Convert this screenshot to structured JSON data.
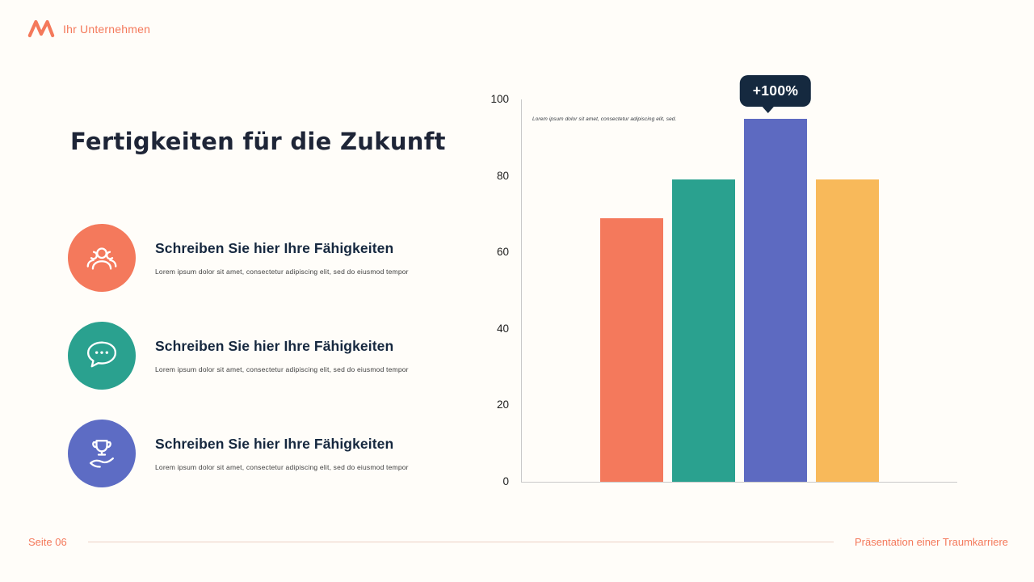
{
  "header": {
    "brand": "Ihr Unternehmen"
  },
  "slide": {
    "title": "Fertigkeiten für die Zukunft",
    "items": [
      {
        "icon": "people-icon",
        "color": "#f4795c",
        "heading": "Schreiben Sie hier Ihre Fähigkeiten",
        "body": "Lorem ipsum dolor sit amet, consectetur adipiscing elit, sed do eiusmod tempor"
      },
      {
        "icon": "chat-bubble-icon",
        "color": "#2aa18f",
        "heading": "Schreiben Sie hier Ihre Fähigkeiten",
        "body": "Lorem ipsum dolor sit amet, consectetur adipiscing elit, sed do eiusmod tempor"
      },
      {
        "icon": "trophy-hand-icon",
        "color": "#5d6cc4",
        "heading": "Schreiben Sie hier Ihre Fähigkeiten",
        "body": "Lorem ipsum dolor sit amet, consectetur adipiscing elit, sed do eiusmod tempor"
      }
    ]
  },
  "chart_data": {
    "type": "bar",
    "categories": [
      "",
      "",
      "",
      ""
    ],
    "values": [
      69,
      79,
      95,
      79
    ],
    "bar_colors": [
      "#f4795c",
      "#2aa18f",
      "#5d6ac1",
      "#f8b95a"
    ],
    "ylim": [
      0,
      100
    ],
    "yticks": [
      0,
      20,
      40,
      60,
      80,
      100
    ],
    "grid": "off",
    "legend": "none",
    "annotation": {
      "label": "+100%",
      "bar_index": 2
    },
    "note": "Lorem ipsum dolor sit amet, consectetur adipiscing elit, sed."
  },
  "footer": {
    "page": "Seite 06",
    "right": "Präsentation einer Traumkarriere"
  },
  "colors": {
    "accent": "#f4795b",
    "navy": "#15293f",
    "background": "#fffdf9"
  }
}
